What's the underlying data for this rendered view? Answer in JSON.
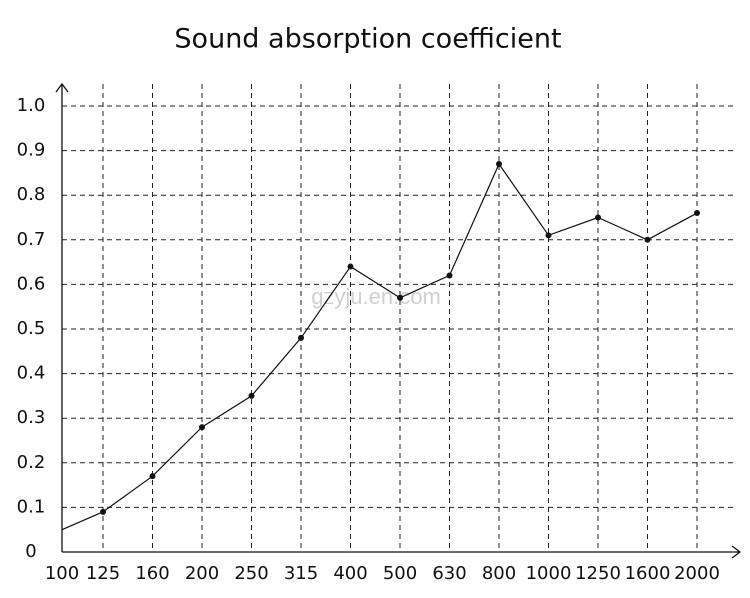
{
  "chart_data": {
    "type": "line",
    "title": "Sound absorption coefficient",
    "categories": [
      "100",
      "125",
      "160",
      "200",
      "250",
      "315",
      "400",
      "500",
      "630",
      "800",
      "1000",
      "1250",
      "1600",
      "2000"
    ],
    "values": [
      0.05,
      0.09,
      0.17,
      0.28,
      0.35,
      0.48,
      0.64,
      0.57,
      0.62,
      0.87,
      0.71,
      0.75,
      0.7,
      0.76
    ],
    "color": "#111111",
    "ylim": [
      0,
      1
    ],
    "yticks": [
      0,
      0.1,
      0.2,
      0.3,
      0.4,
      0.5,
      0.6,
      0.7,
      0.8,
      0.9,
      {
        "value": 1,
        "label": "1.0"
      }
    ],
    "grid": true,
    "watermark": "gzyju.en.com"
  }
}
